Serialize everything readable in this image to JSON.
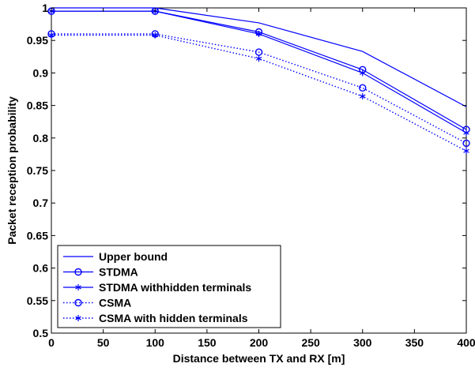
{
  "chart_data": {
    "type": "line",
    "x": [
      0,
      100,
      200,
      300,
      400
    ],
    "xlabel": "Distance between TX and RX [m]",
    "ylabel": "Packet reception probability",
    "xlim": [
      0,
      400
    ],
    "ylim": [
      0.5,
      1
    ],
    "xticks": [
      "0",
      "50",
      "100",
      "150",
      "200",
      "250",
      "300",
      "350",
      "400"
    ],
    "yticks": [
      "0.5",
      "0.55",
      "0.6",
      "0.65",
      "0.7",
      "0.75",
      "0.8",
      "0.85",
      "0.9",
      "0.95",
      "1"
    ],
    "grid": false,
    "legend_position": "bottom-left",
    "color": "#0000ff",
    "series": [
      {
        "name": "Upper bound",
        "values": [
          1.0,
          1.0,
          0.977,
          0.933,
          0.848
        ],
        "line": "solid",
        "marker": "none"
      },
      {
        "name": "STDMA",
        "values": [
          0.995,
          0.995,
          0.963,
          0.905,
          0.813
        ],
        "line": "solid",
        "marker": "circle"
      },
      {
        "name": "STDMA withhidden terminals",
        "values": [
          0.995,
          0.995,
          0.96,
          0.9,
          0.808
        ],
        "line": "solid",
        "marker": "star"
      },
      {
        "name": "CSMA",
        "values": [
          0.96,
          0.96,
          0.932,
          0.877,
          0.792
        ],
        "line": "dotted",
        "marker": "circle"
      },
      {
        "name": "CSMA with hidden terminals",
        "values": [
          0.958,
          0.958,
          0.922,
          0.864,
          0.78
        ],
        "line": "dotted",
        "marker": "star"
      }
    ]
  }
}
